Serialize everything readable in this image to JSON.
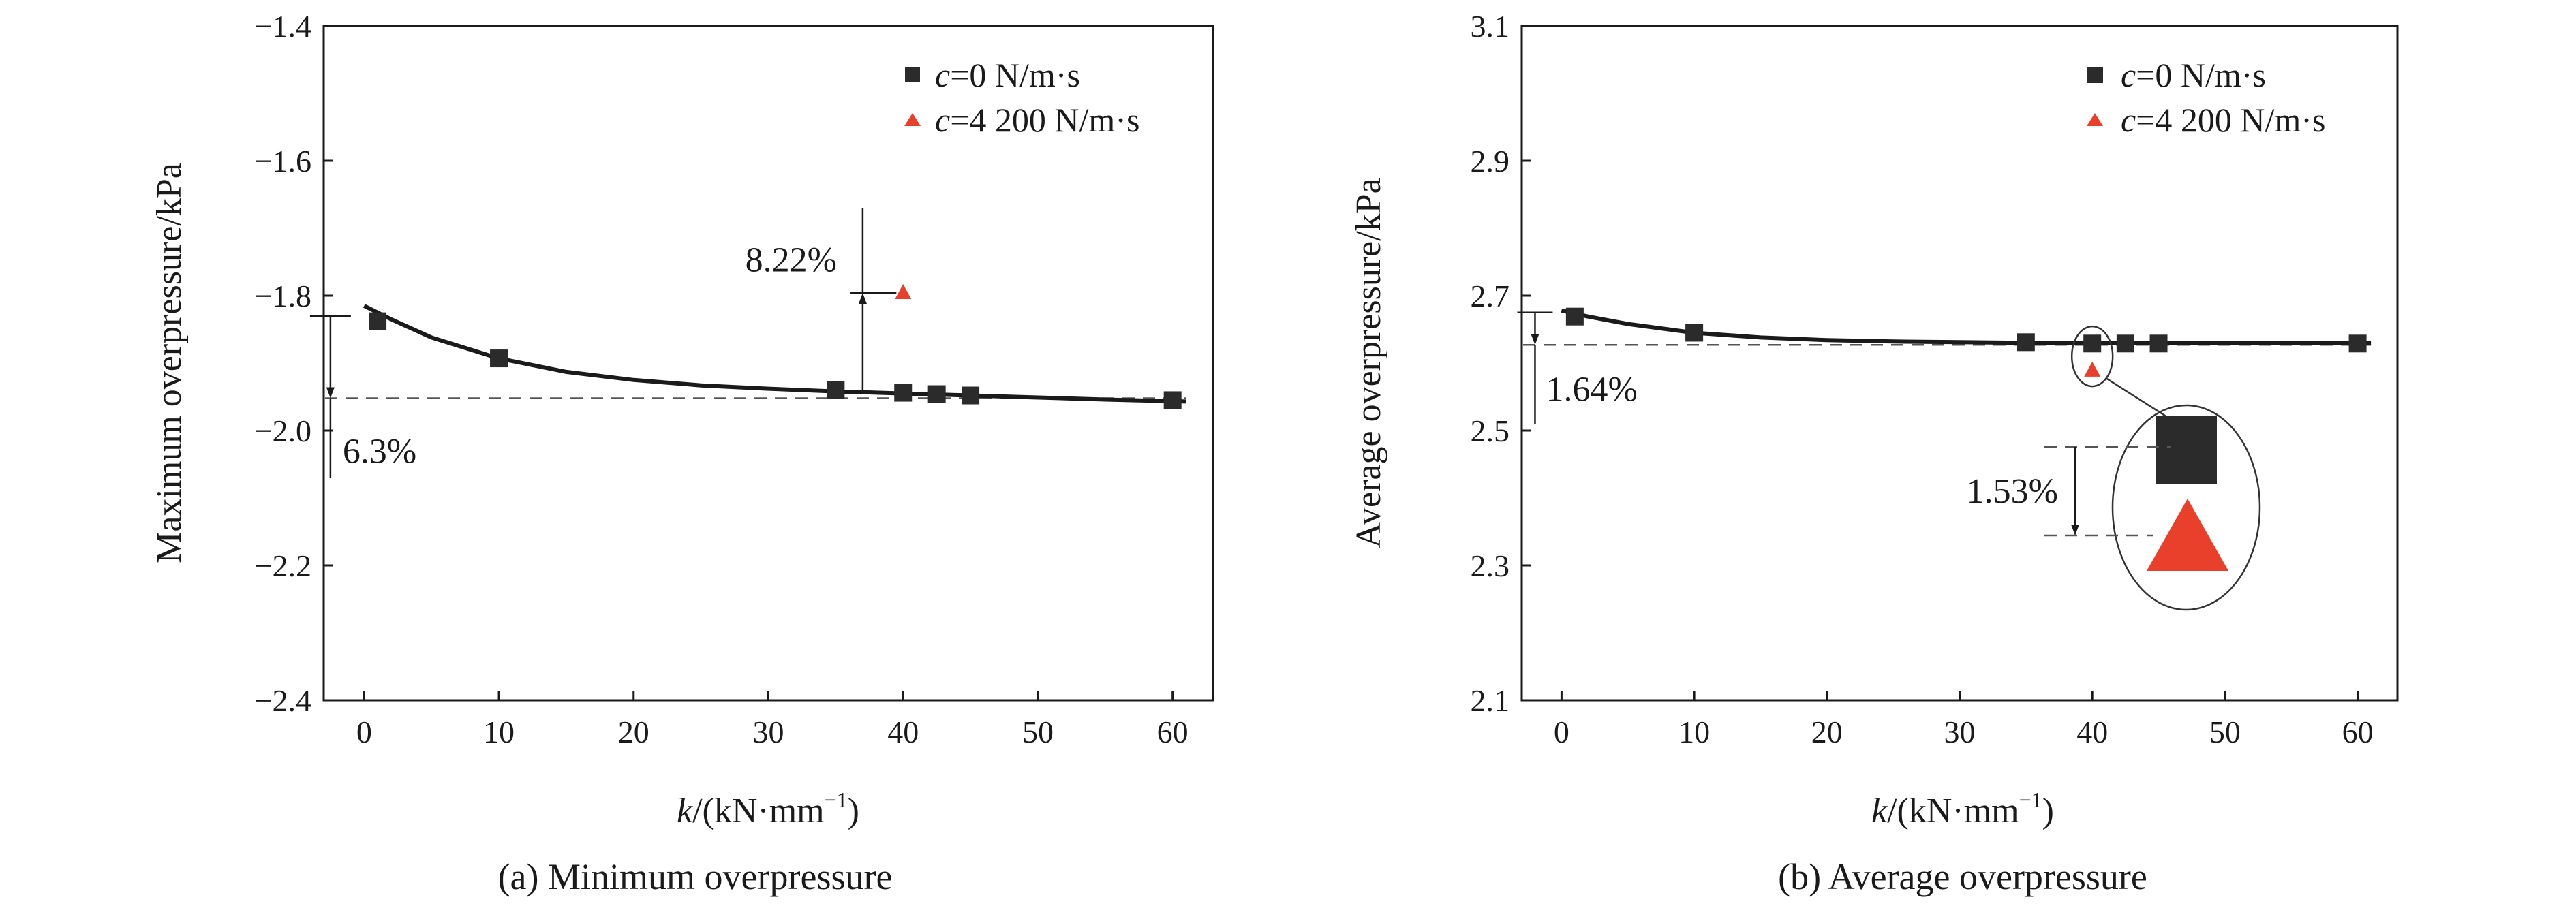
{
  "chart_data": [
    {
      "type": "scatter",
      "caption": "(a) Minimum overpressure",
      "xlabel": "k/(kN·mm⁻¹)",
      "ylabel": "Maximum overpressure/kPa",
      "xlim": [
        -3,
        63
      ],
      "ylim": [
        -2.4,
        -1.4
      ],
      "x_ticks": [
        0,
        10,
        20,
        30,
        40,
        50,
        60
      ],
      "x_tick_labels": [
        "0",
        "10",
        "20",
        "30",
        "40",
        "50",
        "60"
      ],
      "y_ticks": [
        -1.4,
        -1.6,
        -1.8,
        -2.0,
        -2.2,
        -2.4
      ],
      "y_tick_labels": [
        "−1.4",
        "−1.6",
        "−1.8",
        "−2.0",
        "−2.2",
        "−2.4"
      ],
      "grid": false,
      "legend_position": "top-right",
      "series": [
        {
          "name": "c=0 N/m·s",
          "marker": "square",
          "color": "#2b2b2b",
          "x": [
            1,
            10,
            35,
            40,
            42.5,
            45,
            60
          ],
          "y": [
            -1.838,
            -1.893,
            -1.94,
            -1.944,
            -1.946,
            -1.948,
            -1.955
          ]
        },
        {
          "name": "c=4 200 N/m·s",
          "marker": "triangle",
          "color": "#e8402a",
          "x": [
            40
          ],
          "y": [
            -1.796
          ]
        }
      ],
      "fit_curve": {
        "x": [
          0,
          2,
          5,
          10,
          15,
          20,
          25,
          30,
          35,
          40,
          45,
          50,
          55,
          61
        ],
        "y": [
          -1.815,
          -1.835,
          -1.862,
          -1.893,
          -1.913,
          -1.925,
          -1.933,
          -1.938,
          -1.942,
          -1.945,
          -1.948,
          -1.951,
          -1.954,
          -1.957
        ]
      },
      "reference_line_y": -1.952,
      "annotations": [
        {
          "text": "6.3%",
          "arrow_from": -1.83,
          "arrow_to": -1.952,
          "x": -2.5
        },
        {
          "text": "8.22%",
          "arrow_from": -1.944,
          "arrow_to": -1.796,
          "x": 37
        }
      ]
    },
    {
      "type": "scatter",
      "caption": "(b) Average overpressure",
      "xlabel": "k/(kN·mm⁻¹)",
      "ylabel": "Average overpressure/kPa",
      "xlim": [
        -3,
        63
      ],
      "ylim": [
        2.1,
        3.1
      ],
      "x_ticks": [
        0,
        10,
        20,
        30,
        40,
        50,
        60
      ],
      "x_tick_labels": [
        "0",
        "10",
        "20",
        "30",
        "40",
        "50",
        "60"
      ],
      "y_ticks": [
        3.1,
        2.9,
        2.7,
        2.5,
        2.3,
        2.1
      ],
      "y_tick_labels": [
        "3.1",
        "2.9",
        "2.7",
        "2.5",
        "2.3",
        "2.1"
      ],
      "grid": false,
      "legend_position": "top-right",
      "series": [
        {
          "name": "c=0 N/m·s",
          "marker": "square",
          "color": "#2b2b2b",
          "x": [
            1,
            10,
            35,
            40,
            42.5,
            45,
            60
          ],
          "y": [
            2.669,
            2.645,
            2.631,
            2.629,
            2.629,
            2.629,
            2.629
          ]
        },
        {
          "name": "c=4 200 N/m·s",
          "marker": "triangle",
          "color": "#e8402a",
          "x": [
            40
          ],
          "y": [
            2.589
          ]
        }
      ],
      "fit_curve": {
        "x": [
          0,
          2,
          5,
          10,
          15,
          20,
          25,
          30,
          35,
          40,
          45,
          50,
          55,
          61
        ],
        "y": [
          2.678,
          2.669,
          2.658,
          2.645,
          2.638,
          2.634,
          2.632,
          2.631,
          2.63,
          2.63,
          2.63,
          2.63,
          2.63,
          2.63
        ]
      },
      "reference_line_y": 2.627,
      "annotations": [
        {
          "text": "1.64%",
          "arrow_from": 2.675,
          "arrow_to": 2.627,
          "x": -2
        },
        {
          "text": "1.53%"
        }
      ]
    }
  ],
  "legend": {
    "c_symbol": "c",
    "item0_rest": "=0 N/m·s",
    "item1_rest": "=4 200 N/m·s"
  },
  "colors": {
    "square": "#2b2b2b",
    "triangle": "#e8402a"
  }
}
